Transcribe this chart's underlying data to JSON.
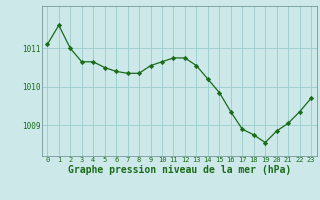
{
  "x": [
    0,
    1,
    2,
    3,
    4,
    5,
    6,
    7,
    8,
    9,
    10,
    11,
    12,
    13,
    14,
    15,
    16,
    17,
    18,
    19,
    20,
    21,
    22,
    23
  ],
  "y": [
    1011.1,
    1011.6,
    1011.0,
    1010.65,
    1010.65,
    1010.5,
    1010.4,
    1010.35,
    1010.35,
    1010.55,
    1010.65,
    1010.75,
    1010.75,
    1010.55,
    1010.2,
    1009.85,
    1009.35,
    1008.9,
    1008.75,
    1008.55,
    1008.85,
    1009.05,
    1009.35,
    1009.7
  ],
  "line_color": "#1a6b1a",
  "marker_color": "#1a6b1a",
  "bg_color": "#cce8e8",
  "grid_color": "#99cccc",
  "xlabel": "Graphe pression niveau de la mer (hPa)",
  "xlabel_fontsize": 7,
  "tick_labels": [
    "0",
    "1",
    "2",
    "3",
    "4",
    "5",
    "6",
    "7",
    "8",
    "9",
    "10",
    "11",
    "12",
    "13",
    "14",
    "15",
    "16",
    "17",
    "18",
    "19",
    "20",
    "21",
    "22",
    "23"
  ],
  "yticks": [
    1009,
    1010,
    1011
  ],
  "ylim": [
    1008.2,
    1012.1
  ],
  "xlim": [
    -0.5,
    23.5
  ]
}
